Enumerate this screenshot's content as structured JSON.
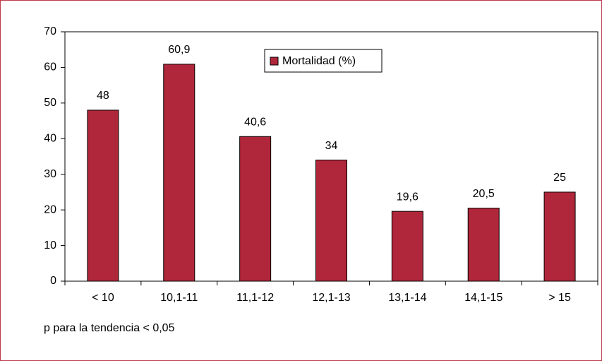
{
  "chart_data": {
    "type": "bar",
    "categories": [
      "< 10",
      "10,1-11",
      "11,1-12",
      "12,1-13",
      "13,1-14",
      "14,1-15",
      "> 15"
    ],
    "series": [
      {
        "name": "Mortalidad (%)",
        "color": "#b0263a",
        "values": [
          48,
          60.9,
          40.6,
          34,
          19.6,
          20.5,
          25
        ],
        "value_labels": [
          "48",
          "60,9",
          "40,6",
          "34",
          "19,6",
          "20,5",
          "25"
        ]
      }
    ],
    "ylim": [
      0,
      70
    ],
    "yticks": [
      0,
      10,
      20,
      30,
      40,
      50,
      60,
      70
    ],
    "legend": "top-center",
    "annotation": "p para la tendencia < 0,05"
  }
}
